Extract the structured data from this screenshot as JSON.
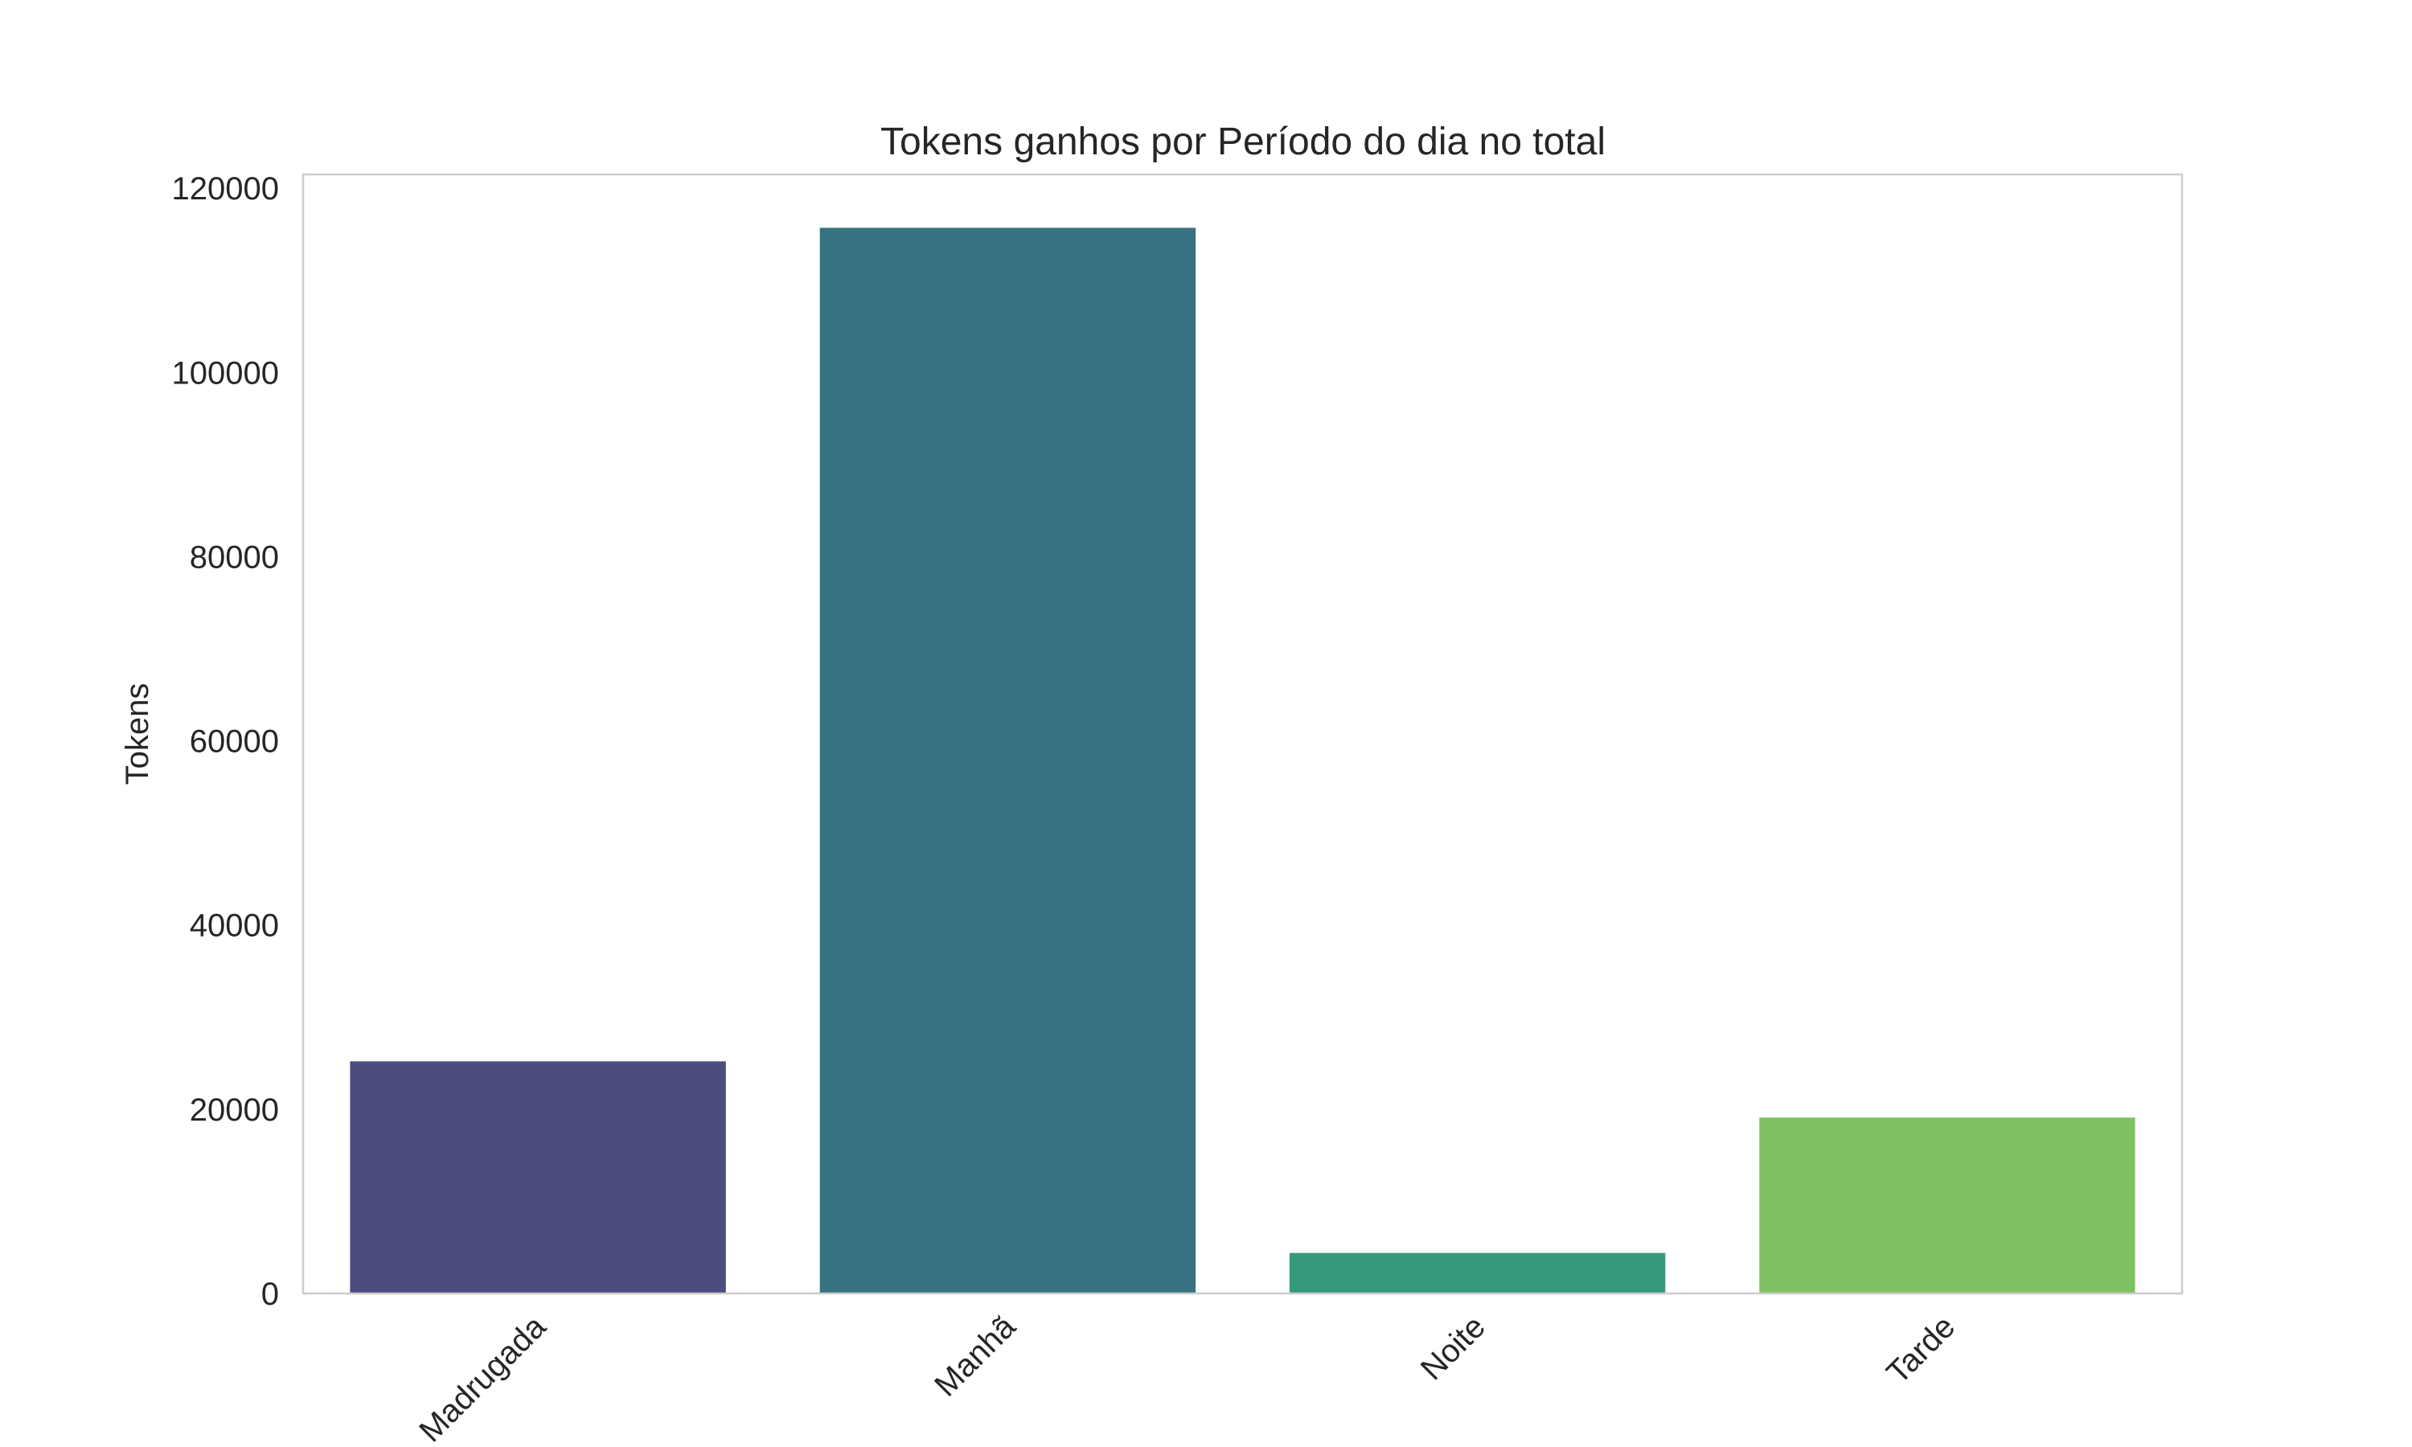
{
  "chart_data": {
    "type": "bar",
    "title": "Tokens ganhos por Período do dia no total",
    "xlabel": "",
    "ylabel": "Tokens",
    "categories": [
      "Madrugada",
      "Manhã",
      "Noite",
      "Tarde"
    ],
    "values": [
      25200,
      115700,
      4400,
      19100
    ],
    "colors": [
      "#4b4d7e",
      "#367282",
      "#36997c",
      "#80c262"
    ],
    "ylim": [
      0,
      121500
    ],
    "yticks": [
      0,
      20000,
      40000,
      60000,
      80000,
      100000,
      120000
    ],
    "ytick_labels": [
      "0",
      "20000",
      "40000",
      "60000",
      "80000",
      "100000",
      "120000"
    ],
    "grid": false,
    "frame_color": "#cccccc"
  }
}
